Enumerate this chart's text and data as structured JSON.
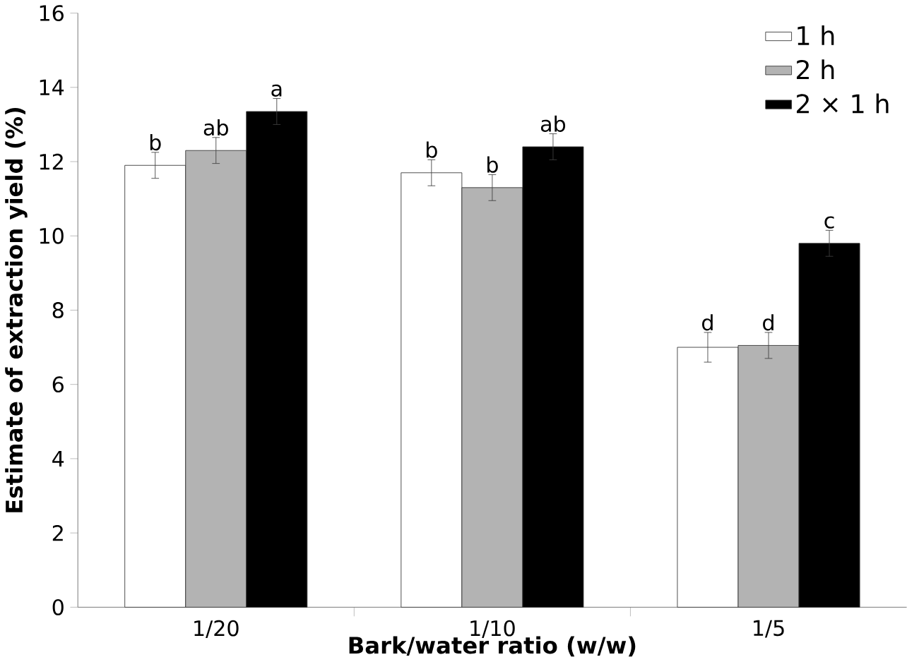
{
  "chart_data": {
    "type": "bar",
    "xlabel": "Bark/water ratio (w/w)",
    "ylabel": "Estimate of extraction yield (%)",
    "categories": [
      "1/20",
      "1/10",
      "1/5"
    ],
    "series": [
      {
        "name": "1 h",
        "color": "#ffffff",
        "values": [
          11.9,
          11.7,
          7.0
        ],
        "errors": [
          0.35,
          0.35,
          0.4
        ],
        "value_labels": [
          "b",
          "b",
          "d"
        ]
      },
      {
        "name": "2 h",
        "color": "#b3b3b3",
        "values": [
          12.3,
          11.3,
          7.05
        ],
        "errors": [
          0.35,
          0.35,
          0.35
        ],
        "value_labels": [
          "ab",
          "b",
          "d"
        ]
      },
      {
        "name": "2 × 1 h",
        "color": "#000000",
        "values": [
          13.35,
          12.4,
          9.8
        ],
        "errors": [
          0.35,
          0.35,
          0.35
        ],
        "value_labels": [
          "a",
          "ab",
          "c"
        ]
      }
    ],
    "ylim": [
      0,
      16
    ],
    "yticks": [
      0,
      2,
      4,
      6,
      8,
      10,
      12,
      14,
      16
    ],
    "grid": false,
    "legend": "top right"
  }
}
